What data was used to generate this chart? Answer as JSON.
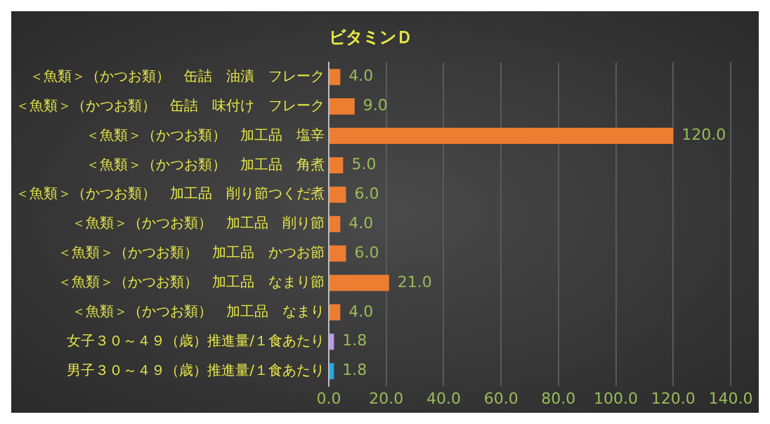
{
  "chart_data": {
    "type": "bar",
    "orientation": "horizontal",
    "title": "ビタミンＤ",
    "categories": [
      "＜魚類＞（かつお類）　缶詰　油漬　フレーク",
      "＜魚類＞（かつお類）　缶詰　味付け　フレーク",
      "＜魚類＞（かつお類）　加工品　塩辛",
      "＜魚類＞（かつお類）　加工品　角煮",
      "＜魚類＞（かつお類）　加工品　削り節つくだ煮",
      "＜魚類＞（かつお類）　加工品　削り節",
      "＜魚類＞（かつお類）　加工品　かつお節",
      "＜魚類＞（かつお類）　加工品　なまり節",
      "＜魚類＞（かつお類）　加工品　なまり",
      "女子３０～４９（歳）推進量/１食あたり",
      "男子３０～４９（歳）推進量/１食あたり"
    ],
    "values": [
      4,
      9,
      120,
      5,
      6,
      4,
      6,
      21,
      4,
      1.8,
      1.8
    ],
    "value_labels": [
      "4.0",
      "9.0",
      "120.0",
      "5.0",
      "6.0",
      "4.0",
      "6.0",
      "21.0",
      "4.0",
      "1.8",
      "1.8"
    ],
    "colors": [
      "#ed7d31",
      "#ed7d31",
      "#ed7d31",
      "#ed7d31",
      "#ed7d31",
      "#ed7d31",
      "#ed7d31",
      "#ed7d31",
      "#ed7d31",
      "#b99ce8",
      "#2aa7de"
    ],
    "xlim": [
      0,
      140
    ],
    "xticks": [
      {
        "value": 0,
        "label": "0.0"
      },
      {
        "value": 20,
        "label": "20.0"
      },
      {
        "value": 40,
        "label": "40.0"
      },
      {
        "value": 60,
        "label": "60.0"
      },
      {
        "value": 80,
        "label": "80.0"
      },
      {
        "value": 100,
        "label": "100.0"
      },
      {
        "value": 120,
        "label": "120.0"
      },
      {
        "value": 140,
        "label": "140.0"
      }
    ],
    "grid": "x",
    "legend": false
  }
}
